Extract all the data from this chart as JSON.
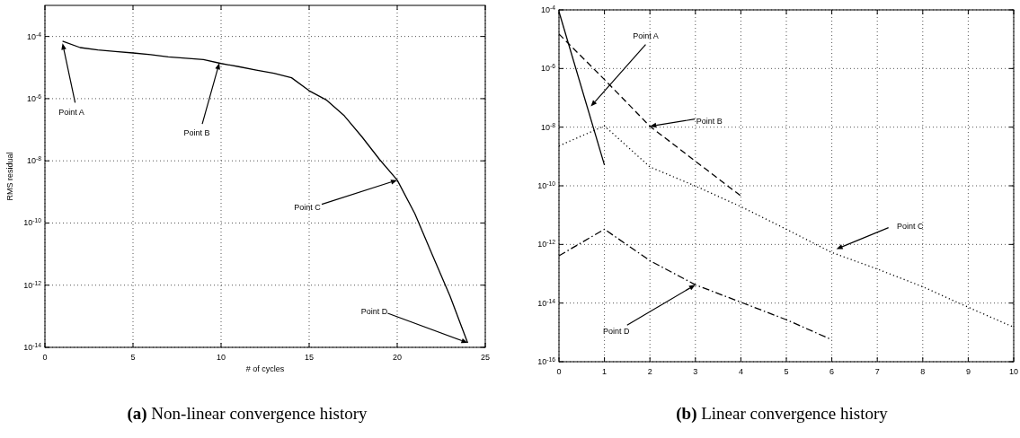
{
  "chart_data": [
    {
      "type": "line",
      "title": "(a) Non-linear convergence history",
      "xlabel": "# of cycles",
      "ylabel": "RMS residual",
      "log": "y",
      "grid": true,
      "xlim": [
        0,
        25
      ],
      "xticks": [
        0,
        5,
        10,
        15,
        20,
        25
      ],
      "ylim": [
        1e-14,
        0.001
      ],
      "yticks": [
        {
          "value": 1e-14,
          "label": "10$^{-14}$"
        },
        {
          "value": 1e-12,
          "label": "10$^{-12}$"
        },
        {
          "value": 1e-10,
          "label": "10$^{-10}$"
        },
        {
          "value": 1e-08,
          "label": "10$^{-8}$"
        },
        {
          "value": 1e-06,
          "label": "10$^{-6}$"
        },
        {
          "value": 0.0001,
          "label": "10$^{-4}$"
        }
      ],
      "x": [
        1,
        2,
        3,
        4,
        5,
        6,
        7,
        8,
        9,
        10,
        11,
        12,
        13,
        14,
        15,
        16,
        17,
        18,
        19,
        20,
        21,
        22,
        23,
        24
      ],
      "series": [
        {
          "color": "#000000",
          "line_style": "solid",
          "values": [
            7.1e-05,
            4.4e-05,
            3.7e-05,
            3.3e-05,
            2.95e-05,
            2.6e-05,
            2.2e-05,
            2e-05,
            1.8e-05,
            1.35e-05,
            1.07e-05,
            8.3e-06,
            6.6e-06,
            4.7e-06,
            1.8e-06,
            8.9e-07,
            2.8e-07,
            5.9e-08,
            1.1e-08,
            2.4e-09,
            2e-10,
            9.3e-12,
            4.4e-13,
            1.4e-14
          ]
        }
      ],
      "annotations": [
        {
          "text": "Point A",
          "x": 1,
          "y": 6e-05
        },
        {
          "text": "Point B",
          "x": 9.9,
          "y": 1.4e-05
        },
        {
          "text": "Point C",
          "x": 20,
          "y": 2.4e-09
        },
        {
          "text": "Point D",
          "x": 24,
          "y": 1.4e-14
        }
      ]
    },
    {
      "type": "line",
      "title": "(b) Linear convergence history",
      "log": "y",
      "grid": true,
      "xlim": [
        0,
        10
      ],
      "xticks": [
        0,
        1,
        2,
        3,
        4,
        5,
        6,
        7,
        8,
        9,
        10
      ],
      "ylim": [
        1e-16,
        0.0001
      ],
      "yticks": [
        {
          "value": 1e-16,
          "label": "10$^{-16}$"
        },
        {
          "value": 1e-14,
          "label": "10$^{-14}$"
        },
        {
          "value": 1e-12,
          "label": "10$^{-12}$"
        },
        {
          "value": 1e-10,
          "label": "10$^{-10}$"
        },
        {
          "value": 1e-08,
          "label": "10$^{-8}$"
        },
        {
          "value": 1e-06,
          "label": "10$^{-6}$"
        },
        {
          "value": 0.0001,
          "label": "10$^{-4}$"
        }
      ],
      "series": [
        {
          "color": "#000000",
          "line_style": "solid",
          "x": [
            0,
            1
          ],
          "values": [
            8.7e-05,
            5.1e-10
          ]
        },
        {
          "color": "#000000",
          "line_style": "dashed",
          "x": [
            0,
            1,
            2,
            3,
            4
          ],
          "values": [
            1.5e-05,
            4.2e-07,
            1.07e-08,
            6.9e-10,
            4.5e-11
          ]
        },
        {
          "color": "#000000",
          "line_style": "dotted",
          "x": [
            0,
            1,
            2,
            3,
            4,
            5,
            6,
            7,
            8,
            9,
            10
          ],
          "values": [
            2.3e-09,
            1.1e-08,
            4.4e-10,
            9.8e-11,
            1.95e-11,
            3.3e-12,
            5.3e-13,
            1.45e-13,
            3.6e-14,
            7.2e-15,
            1.5e-15
          ]
        },
        {
          "color": "#000000",
          "line_style": "dashdot",
          "x": [
            0,
            1,
            2,
            3,
            4,
            5,
            6
          ],
          "values": [
            4.1e-13,
            3.3e-12,
            2.8e-13,
            4.2e-14,
            1.07e-14,
            2.7e-15,
            5.6e-16
          ]
        }
      ],
      "annotations": [
        {
          "text": "Point A",
          "x": 0.7,
          "y": 5.1e-08
        },
        {
          "text": "Point B",
          "x": 2,
          "y": 1.07e-08
        },
        {
          "text": "Point C",
          "x": 6.1,
          "y": 6.9e-13
        },
        {
          "text": "Point D",
          "x": 3,
          "y": 4.2e-14
        }
      ]
    }
  ]
}
